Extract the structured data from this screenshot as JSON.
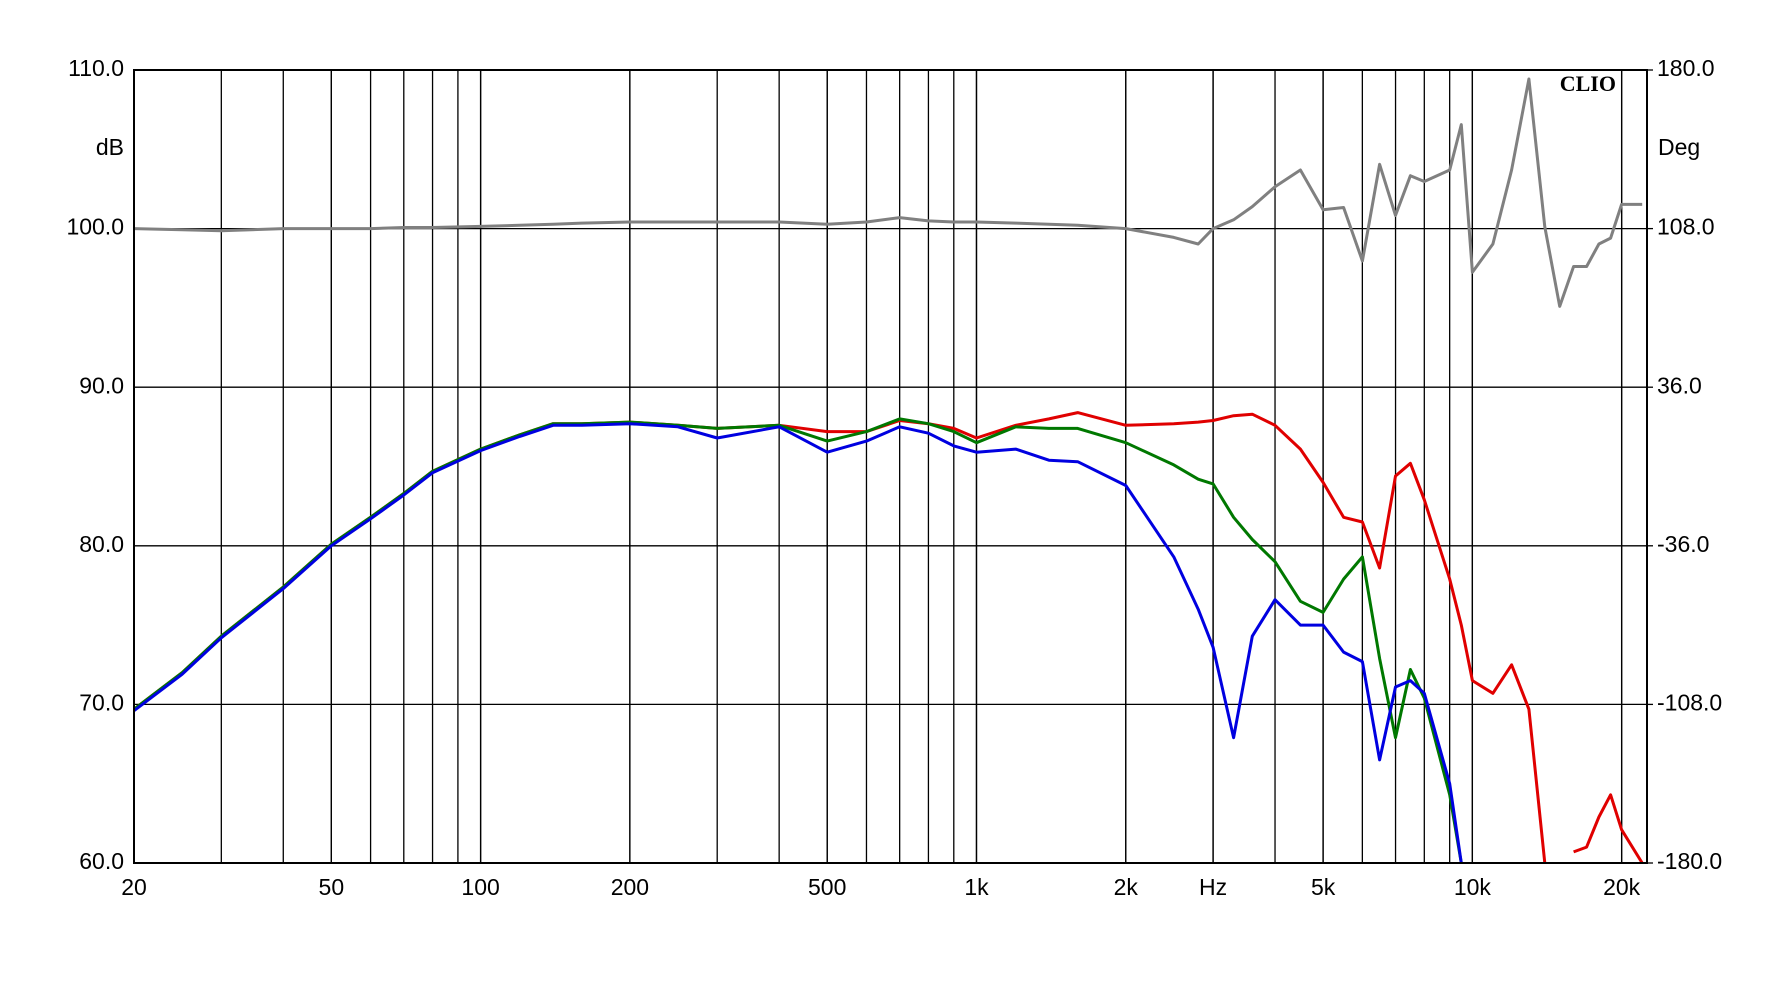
{
  "chart_data": {
    "type": "line",
    "y_label": "dB",
    "y2_label": "Deg",
    "annotation": "CLIO",
    "x_log": true,
    "grid": true,
    "minor_grid": true,
    "xlim": [
      20,
      22500
    ],
    "ylim": [
      60,
      110
    ],
    "y2lim": [
      -180,
      180
    ],
    "xticks": [
      20,
      50,
      100,
      200,
      500,
      {
        "value": 1000,
        "label": "1k"
      },
      {
        "value": 2000,
        "label": "2k"
      },
      {
        "value": 3000,
        "label": "Hz"
      },
      {
        "value": 5000,
        "label": "5k"
      },
      {
        "value": 10000,
        "label": "10k"
      },
      {
        "value": 20000,
        "label": "20k"
      }
    ],
    "yticks": [
      {
        "value": 60,
        "label": "60.0"
      },
      {
        "value": 70,
        "label": "70.0"
      },
      {
        "value": 80,
        "label": "80.0"
      },
      {
        "value": 90,
        "label": "90.0"
      },
      {
        "value": 100,
        "label": "100.0"
      },
      {
        "value": 110,
        "label": "110.0"
      }
    ],
    "y2ticks": [
      {
        "value": -180,
        "label": "-180.0"
      },
      {
        "value": -108,
        "label": "-108.0"
      },
      {
        "value": -36,
        "label": "-36.0"
      },
      {
        "value": 36,
        "label": "36.0"
      },
      {
        "value": 108,
        "label": "108.0"
      },
      {
        "value": 180,
        "label": "180.0"
      }
    ],
    "x": [
      20,
      25,
      30,
      40,
      50,
      60,
      70,
      80,
      100,
      120,
      140,
      160,
      200,
      250,
      300,
      400,
      500,
      600,
      700,
      800,
      900,
      1000,
      1200,
      1400,
      1600,
      2000,
      2500,
      2800,
      3000,
      3300,
      3600,
      4000,
      4500,
      5000,
      5500,
      6000,
      6500,
      7000,
      7500,
      8000,
      9000,
      9500,
      10000,
      11000,
      12000,
      13000,
      14000,
      15000,
      16000,
      17000,
      18000,
      19000,
      20000,
      22000
    ],
    "series": [
      {
        "color": "#808080",
        "axis": "y2",
        "values": [
          108,
          107.5,
          107,
          108,
          108,
          108,
          108.5,
          108.5,
          109,
          109.5,
          110,
          110.5,
          111,
          111,
          111,
          111,
          110,
          111,
          113,
          111.5,
          111,
          111,
          110.5,
          110,
          109.5,
          108,
          104,
          101,
          108,
          112,
          118,
          127,
          134.6,
          116.6,
          117.6,
          93.3,
          137.2,
          114,
          132,
          129.4,
          134.6,
          155.2,
          88.2,
          101,
          134.6,
          175.9,
          108.8,
          72.7,
          90.8,
          90.8,
          101,
          103.7,
          119,
          119
        ]
      },
      {
        "color": "#e00000",
        "values": [
          69.7,
          72.0,
          74.3,
          77.4,
          80.1,
          81.8,
          83.3,
          84.7,
          86.1,
          87.0,
          87.7,
          87.7,
          87.8,
          87.6,
          87.4,
          87.6,
          87.2,
          87.2,
          87.9,
          87.7,
          87.4,
          86.8,
          87.6,
          88.0,
          88.4,
          87.6,
          87.7,
          87.8,
          87.9,
          88.2,
          88.3,
          87.6,
          86.1,
          84.0,
          81.8,
          81.5,
          78.6,
          84.4,
          85.2,
          82.9,
          77.9,
          75.0,
          71.5,
          70.7,
          72.5,
          69.7,
          60.0,
          null,
          60.7,
          61.0,
          62.9,
          64.3,
          62.1,
          60.0
        ]
      },
      {
        "color": "#007800",
        "values": [
          69.7,
          72.0,
          74.3,
          77.4,
          80.1,
          81.8,
          83.3,
          84.7,
          86.1,
          87.0,
          87.7,
          87.7,
          87.8,
          87.6,
          87.4,
          87.6,
          86.6,
          87.2,
          88.0,
          87.7,
          87.2,
          86.5,
          87.5,
          87.4,
          87.4,
          86.5,
          85.1,
          84.2,
          83.9,
          81.8,
          80.4,
          79.0,
          76.5,
          75.8,
          77.9,
          79.3,
          72.9,
          67.9,
          72.2,
          70.4,
          64.3,
          60.0,
          null,
          null,
          null,
          null,
          null,
          null,
          null,
          null,
          null,
          null,
          null,
          null
        ]
      },
      {
        "color": "#0000e0",
        "values": [
          69.6,
          71.9,
          74.2,
          77.3,
          80.0,
          81.7,
          83.2,
          84.6,
          86.0,
          86.9,
          87.6,
          87.6,
          87.7,
          87.5,
          86.8,
          87.5,
          85.9,
          86.6,
          87.5,
          87.1,
          86.3,
          85.9,
          86.1,
          85.4,
          85.3,
          83.8,
          79.3,
          76.0,
          73.6,
          67.9,
          74.3,
          76.6,
          75.0,
          75.0,
          73.3,
          72.7,
          66.5,
          71.1,
          71.5,
          70.7,
          65.0,
          60.0,
          null,
          null,
          null,
          null,
          null,
          null,
          null,
          null,
          null,
          null,
          null,
          null
        ]
      }
    ]
  }
}
